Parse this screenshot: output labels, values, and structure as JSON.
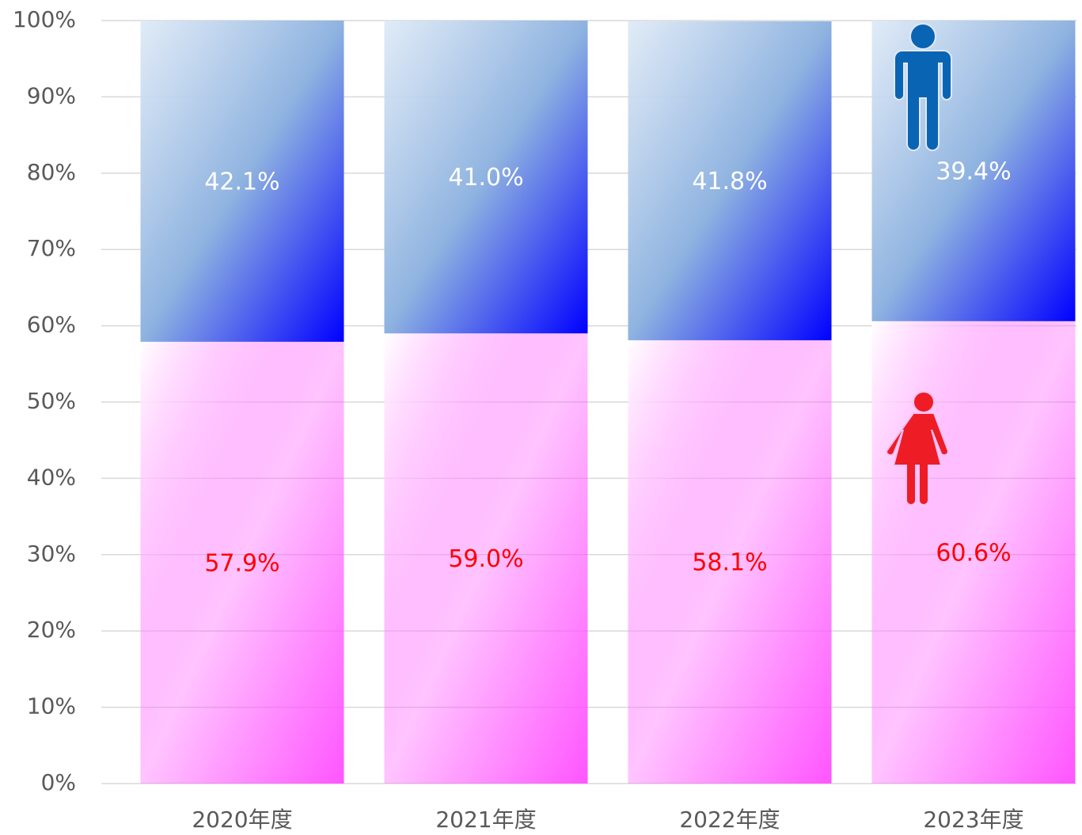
{
  "chart_data": {
    "type": "stacked_bar",
    "categories": [
      "2020年度",
      "2021年度",
      "2022年度",
      "2023年度"
    ],
    "series": [
      {
        "color": "#ff55ff",
        "label_color": "#ff0000",
        "values": [
          57.9,
          59.0,
          58.1,
          60.6
        ],
        "value_labels": [
          "57.9%",
          "59.0%",
          "58.1%",
          "60.6%"
        ]
      },
      {
        "color": "#0000ff",
        "label_color": "#ffffff",
        "values": [
          42.1,
          41.0,
          41.8,
          39.4
        ],
        "value_labels": [
          "42.1%",
          "41.0%",
          "41.8%",
          "39.4%"
        ]
      }
    ],
    "ylim": [
      0,
      100
    ],
    "yticks": [
      {
        "value": 0,
        "label": "0%"
      },
      {
        "value": 10,
        "label": "10%"
      },
      {
        "value": 20,
        "label": "20%"
      },
      {
        "value": 30,
        "label": "30%"
      },
      {
        "value": 40,
        "label": "40%"
      },
      {
        "value": 50,
        "label": "50%"
      },
      {
        "value": 60,
        "label": "60%"
      },
      {
        "value": 70,
        "label": "70%"
      },
      {
        "value": 80,
        "label": "80%"
      },
      {
        "value": 90,
        "label": "90%"
      },
      {
        "value": 100,
        "label": "100%"
      }
    ],
    "grid": true
  }
}
